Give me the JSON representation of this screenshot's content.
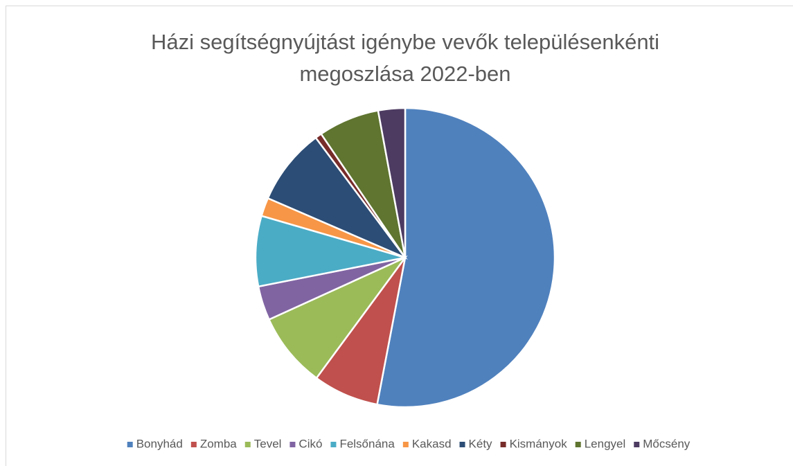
{
  "chart_data": {
    "type": "pie",
    "title": "Házi segítségnyújtást igénybe vevők településenkénti megoszlása 2022-ben",
    "categories": [
      "Bonyhád",
      "Zomba",
      "Tevel",
      "Cikó",
      "Felsőnána",
      "Kakasd",
      "Kéty",
      "Kismányok",
      "Lengyel",
      "Mőcsény"
    ],
    "values": [
      53,
      7.1,
      8.1,
      3.7,
      7.6,
      2,
      8.3,
      0.7,
      6.6,
      2.9
    ],
    "colors": [
      "#4f81bd",
      "#c0504d",
      "#9bbb59",
      "#8064a2",
      "#4bacc6",
      "#f79646",
      "#2c4d75",
      "#772c2a",
      "#5f7530",
      "#4d3b62"
    ],
    "legend": "bottom"
  }
}
